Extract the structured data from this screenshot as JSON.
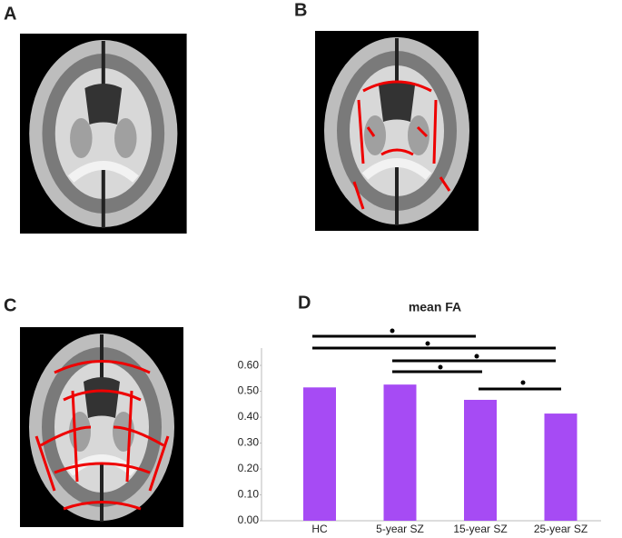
{
  "panel_labels": [
    "A",
    "B",
    "C",
    "D"
  ],
  "chart_data": {
    "type": "bar",
    "title": "mean FA",
    "categories": [
      "HC",
      "5-year SZ",
      "15-year SZ",
      "25-year SZ"
    ],
    "values": [
      0.515,
      0.526,
      0.467,
      0.414
    ],
    "color": "#a64bf4",
    "ylim": [
      0,
      0.667
    ],
    "yticks": [
      {
        "value": 0,
        "label": "0.00"
      },
      {
        "value": 0.1,
        "label": "0.10"
      },
      {
        "value": 0.2,
        "label": "0.20"
      },
      {
        "value": 0.3,
        "label": "0.30"
      },
      {
        "value": 0.4,
        "label": "0.40"
      },
      {
        "value": 0.5,
        "label": "0.50"
      },
      {
        "value": 0.6,
        "label": "0.60"
      }
    ]
  }
}
